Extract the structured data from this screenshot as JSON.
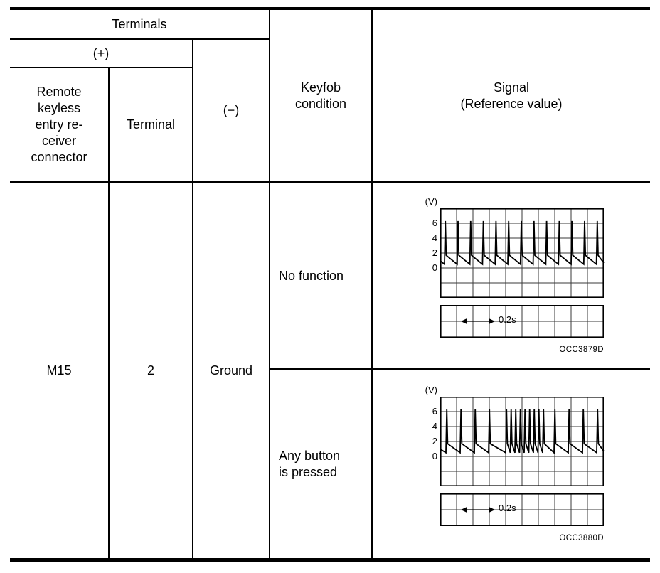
{
  "page": {
    "background": "#ffffff",
    "text_color": "#000000"
  },
  "table": {
    "header": {
      "terminals_label": "Terminals",
      "plus_label": "(+)",
      "minus_label": "(−)",
      "connector_label": "Remote\nkeyless\nentry re-\nceiver\nconnector",
      "terminal_label": "Terminal",
      "keyfob_label": "Keyfob\ncondition",
      "signal_label": "Signal\n(Reference value)"
    },
    "body": {
      "connector_value": "M15",
      "terminal_value": "2",
      "ground_value": "Ground",
      "rows": [
        {
          "condition": "No function"
        },
        {
          "condition": "Any button\nis pressed"
        }
      ]
    }
  },
  "chart_data": [
    {
      "type": "line",
      "subtype": "oscilloscope pulse train",
      "ylabel": "(V)",
      "y_ticks": [
        6,
        4,
        2,
        0
      ],
      "ylim": [
        -1,
        7
      ],
      "grid": true,
      "time_marker_label": "0.2s",
      "caption": "OCC3879D",
      "pattern": "regular",
      "pulse_count": 13,
      "baseline_v": 0.5,
      "peak_v": 6
    },
    {
      "type": "line",
      "subtype": "oscilloscope pulse train with dense burst while button pressed",
      "ylabel": "(V)",
      "y_ticks": [
        6,
        4,
        2,
        0
      ],
      "ylim": [
        -1,
        7
      ],
      "grid": true,
      "time_marker_label": "0.2s",
      "caption": "OCC3880D",
      "pattern": "burst",
      "pulse_count_left": 4,
      "burst_pulse_count": 9,
      "pulse_count_right": 4,
      "baseline_v": 0.5,
      "peak_v": 6
    }
  ]
}
